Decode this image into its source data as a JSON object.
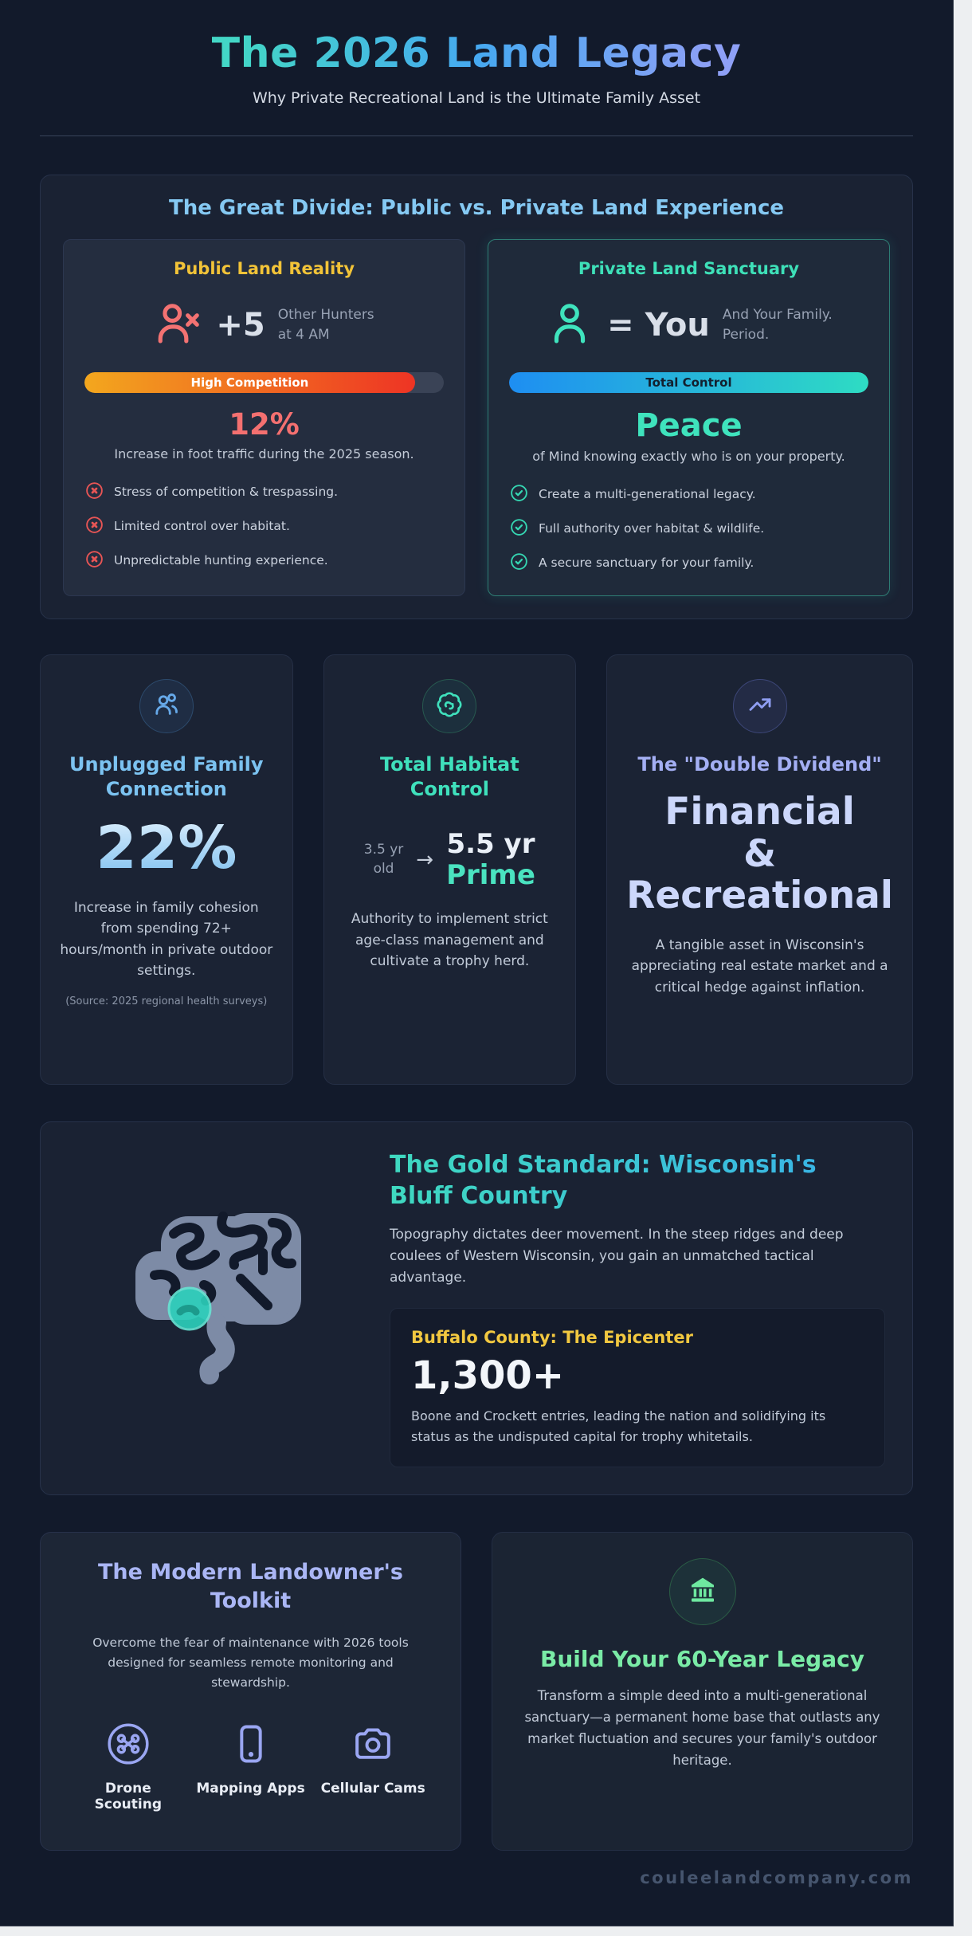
{
  "page": {
    "title": "The 2026 Land Legacy",
    "subtitle": "Why Private Recreational Land is the Ultimate Family Asset",
    "footer": "couleelandcompany.com"
  },
  "versus": {
    "heading": "The Great Divide: Public vs. Private Land Experience",
    "public": {
      "title": "Public Land Reality",
      "stat_value": "+5",
      "stat_caption_line1": "Other Hunters",
      "stat_caption_line2": "at 4 AM",
      "bar_label": "High Competition",
      "bar_percent": 92,
      "metric_value": "12%",
      "metric_caption": "Increase in foot traffic during the 2025 season.",
      "items": [
        "Stress of competition & trespassing.",
        "Limited control over habitat.",
        "Unpredictable hunting experience."
      ]
    },
    "private": {
      "title": "Private Land Sanctuary",
      "stat_value": "= You",
      "stat_caption_line1": "And Your Family.",
      "stat_caption_line2": "Period.",
      "bar_label": "Total Control",
      "bar_percent": 100,
      "metric_value": "Peace",
      "metric_caption": "of Mind knowing exactly who is on your property.",
      "items": [
        "Create a multi-generational legacy.",
        "Full authority over habitat & wildlife.",
        "A secure sanctuary for your family."
      ]
    }
  },
  "stats": {
    "family": {
      "title": "Unplugged Family Connection",
      "value": "22%",
      "description": "Increase in family cohesion from spending 72+ hours/month in private outdoor settings.",
      "source": "(Source: 2025 regional health surveys)"
    },
    "habitat": {
      "title": "Total Habitat Control",
      "from_line1": "3.5 yr",
      "from_line2": "old",
      "arrow": "→",
      "to_value": "5.5 yr",
      "to_label": "Prime",
      "description": "Authority to implement strict age-class management and cultivate a trophy herd."
    },
    "dividend": {
      "title": "The \"Double Dividend\"",
      "value_line1": "Financial",
      "value_line2": "&",
      "value_line3": "Recreational",
      "description": "A tangible asset in Wisconsin's appreciating real estate market and a critical hedge against inflation."
    }
  },
  "gold": {
    "heading": "The Gold Standard: Wisconsin's Bluff Country",
    "description": "Topography dictates deer movement. In the steep ridges and deep coulees of Western Wisconsin, you gain an unmatched tactical advantage.",
    "highlight": {
      "title": "Buffalo County: The Epicenter",
      "value": "1,300+",
      "description": "Boone and Crockett entries, leading the nation and solidifying its status as the undisputed capital for trophy whitetails."
    }
  },
  "toolkit": {
    "title": "The Modern Landowner's Toolkit",
    "description": "Overcome the fear of maintenance with 2026 tools designed for seamless remote monitoring and stewardship.",
    "tools": [
      {
        "label": "Drone Scouting"
      },
      {
        "label": "Mapping Apps"
      },
      {
        "label": "Cellular Cams"
      }
    ]
  },
  "legacy": {
    "title": "Build Your 60-Year Legacy",
    "description": "Transform a simple deed into a multi-generational sanctuary—a permanent home base that outlasts any market fluctuation and secures your family's outdoor heritage."
  },
  "colors": {
    "page_background": "#121a2b",
    "accent_yellow": "#f2c338",
    "accent_teal": "#3ee0b8",
    "accent_red": "#f47070",
    "accent_blue": "#7cc3f1",
    "accent_periwinkle": "#aab6f5",
    "accent_green": "#7aeba6"
  }
}
